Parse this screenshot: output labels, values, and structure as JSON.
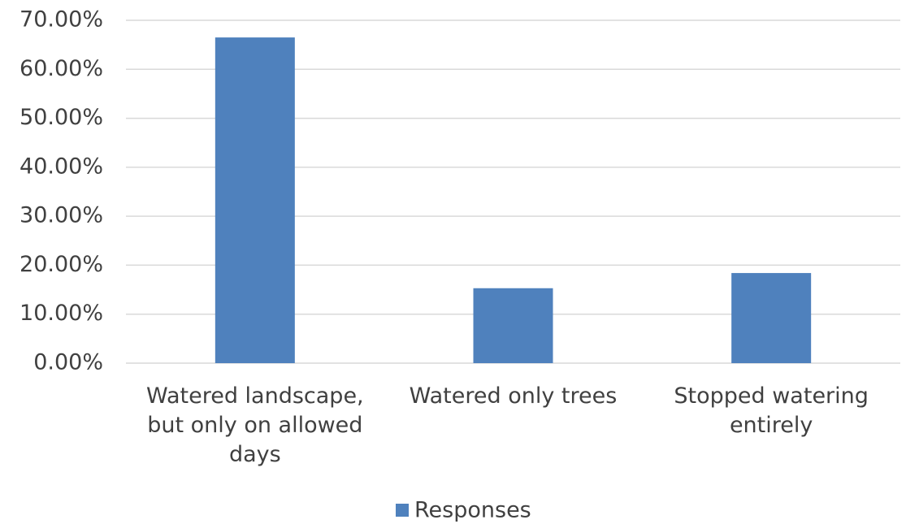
{
  "chart_data": {
    "type": "bar",
    "categories": [
      "Watered landscape, but only on allowed days",
      "Watered only trees",
      "Stopped watering entirely"
    ],
    "series": [
      {
        "name": "Responses",
        "color": "#4f81bd",
        "values": [
          66.5,
          15.3,
          18.4
        ]
      }
    ],
    "ylim": [
      0,
      70
    ],
    "yticks": [
      {
        "value": 0,
        "label": "0.00%"
      },
      {
        "value": 10,
        "label": "10.00%"
      },
      {
        "value": 20,
        "label": "20.00%"
      },
      {
        "value": 30,
        "label": "30.00%"
      },
      {
        "value": 40,
        "label": "40.00%"
      },
      {
        "value": 50,
        "label": "50.00%"
      },
      {
        "value": 60,
        "label": "60.00%"
      },
      {
        "value": 70,
        "label": "70.00%"
      }
    ],
    "grid": true,
    "legend": "bottom"
  }
}
